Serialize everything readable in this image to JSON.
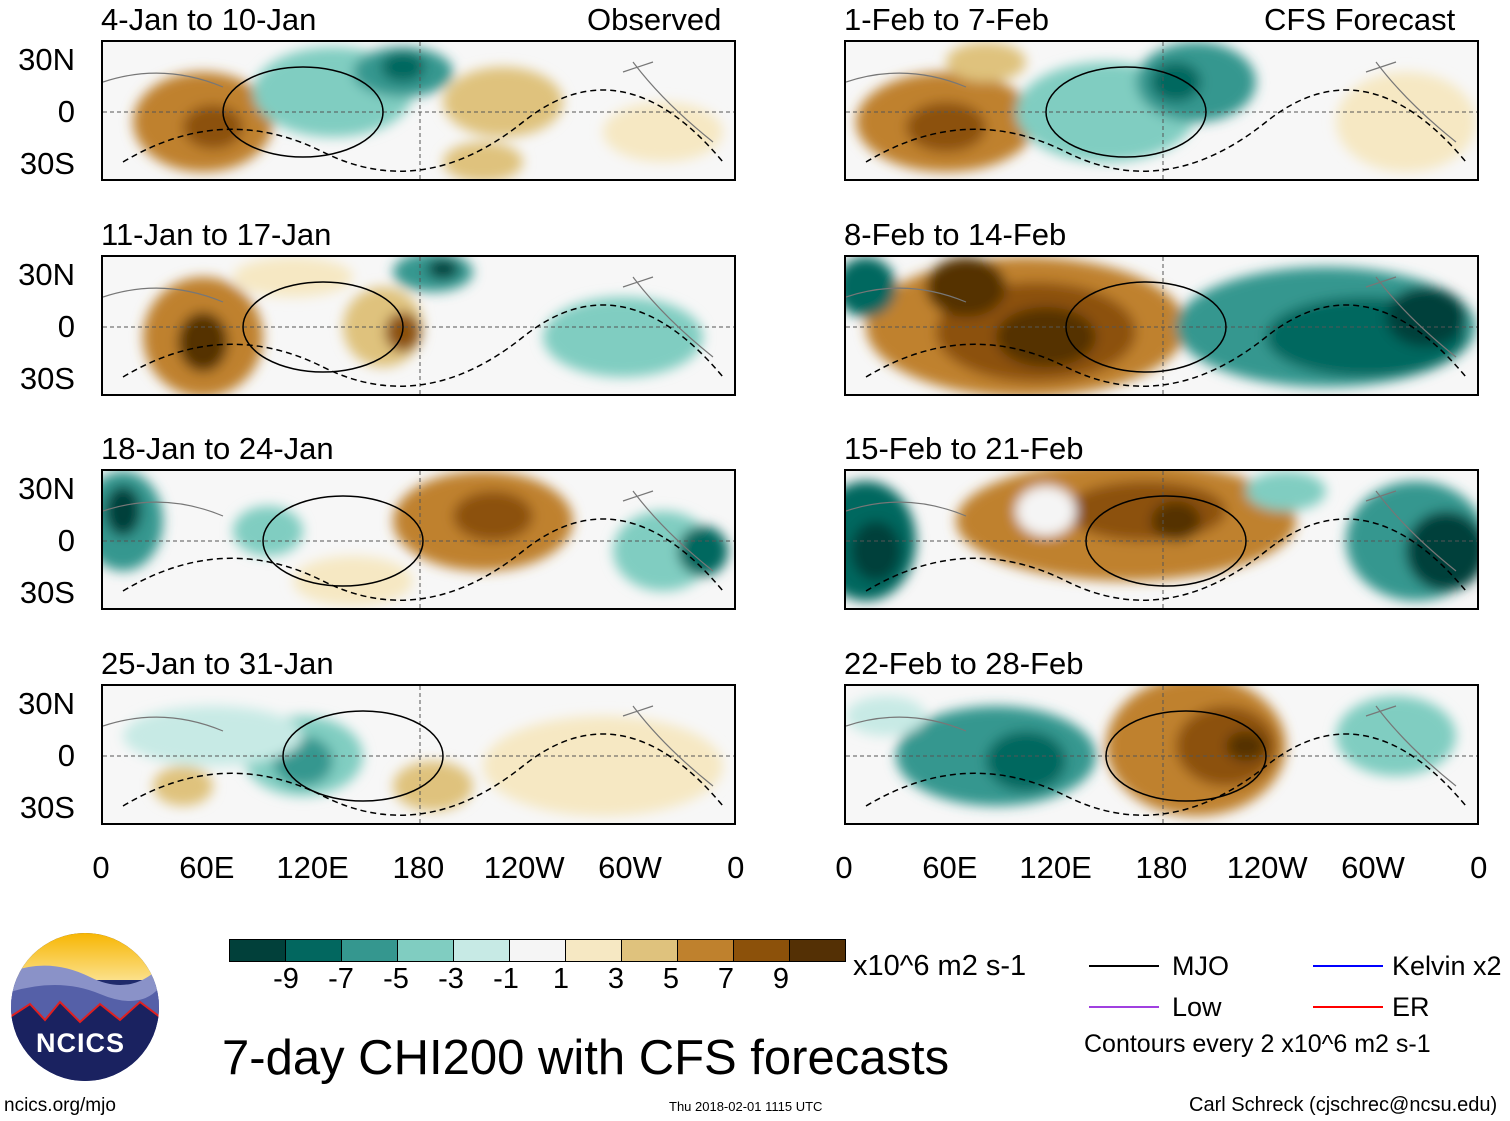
{
  "chart_data": {
    "type": "heatmap",
    "title": "7-day CHI200 with CFS forecasts",
    "units": "x10^6 m2 s-1",
    "column_labels": {
      "observed": "Observed",
      "forecast": "CFS Forecast"
    },
    "panels": [
      {
        "title": "4-Jan to 10-Jan",
        "column": "observed"
      },
      {
        "title": "11-Jan to 17-Jan",
        "column": "observed"
      },
      {
        "title": "18-Jan to 24-Jan",
        "column": "observed"
      },
      {
        "title": "25-Jan to 31-Jan",
        "column": "observed"
      },
      {
        "title": "1-Feb to 7-Feb",
        "column": "forecast"
      },
      {
        "title": "8-Feb to 14-Feb",
        "column": "forecast"
      },
      {
        "title": "15-Feb to 21-Feb",
        "column": "forecast"
      },
      {
        "title": "22-Feb to 28-Feb",
        "column": "forecast"
      }
    ],
    "y_ticks": [
      "30N",
      "0",
      "30S"
    ],
    "x_ticks": [
      "0",
      "60E",
      "120E",
      "180",
      "120W",
      "60W",
      "0"
    ],
    "colorbar": {
      "labels": [
        "-9",
        "-7",
        "-5",
        "-3",
        "-1",
        "1",
        "3",
        "5",
        "7",
        "9"
      ],
      "colors": [
        "#01403a",
        "#02675f",
        "#35978f",
        "#80cdc1",
        "#c7eae5",
        "#f5f5f5",
        "#f6e8c3",
        "#dfc27d",
        "#bf812d",
        "#8c510a",
        "#543005"
      ]
    },
    "legend": [
      {
        "label": "MJO",
        "color": "#000000"
      },
      {
        "label": "Kelvin x2",
        "color": "#0000ff"
      },
      {
        "label": "Low",
        "color": "#a040e0"
      },
      {
        "label": "ER",
        "color": "#ff0000"
      }
    ],
    "contour_note": "Contours every 2 x10^6 m2 s-1"
  },
  "footer": {
    "logo_text": "NCICS",
    "site": "ncics.org/mjo",
    "timestamp": "Thu 2018-02-01 1115 UTC",
    "author": "Carl Schreck (cjschrec@ncsu.edu)"
  }
}
